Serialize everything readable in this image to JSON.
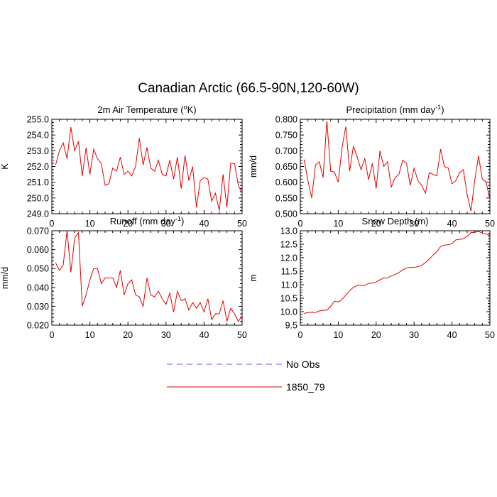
{
  "figure": {
    "title": "Canadian Arctic (66.5-90N,120-60W)"
  },
  "legend": {
    "items": [
      {
        "name": "No Obs",
        "color": "#5a5af0",
        "dash": true
      },
      {
        "name": "1850_79",
        "color": "#e00000",
        "dash": false
      }
    ]
  },
  "colors": {
    "series": "#e00000",
    "axis": "#000000",
    "background": "#ffffff"
  },
  "chart_data": [
    {
      "id": "temp",
      "type": "line",
      "title": "2m Air Temperature (°K)",
      "title_parts": [
        "2m Air Temperature (",
        "o",
        "K)"
      ],
      "ylabel": "K",
      "xlabel": "",
      "xlim": [
        0,
        50
      ],
      "ylim": [
        249.0,
        255.0
      ],
      "xticks": [
        0,
        10,
        20,
        30,
        40,
        50
      ],
      "yticks": [
        249.0,
        250.0,
        251.0,
        252.0,
        253.0,
        254.0,
        255.0
      ],
      "ytick_labels": [
        "249.0",
        "250.0",
        "251.0",
        "252.0",
        "253.0",
        "254.0",
        "255.0"
      ],
      "series": [
        {
          "name": "1850_79",
          "x": [
            1,
            2,
            3,
            4,
            5,
            6,
            7,
            8,
            9,
            10,
            11,
            12,
            13,
            14,
            15,
            16,
            17,
            18,
            19,
            20,
            21,
            22,
            23,
            24,
            25,
            26,
            27,
            28,
            29,
            30,
            31,
            32,
            33,
            34,
            35,
            36,
            37,
            38,
            39,
            40,
            41,
            42,
            43,
            44,
            45,
            46,
            47,
            48,
            49,
            50
          ],
          "values": [
            252.1,
            253.0,
            253.5,
            252.5,
            254.5,
            253.0,
            253.6,
            251.4,
            253.2,
            251.5,
            253.1,
            252.5,
            252.2,
            250.8,
            250.9,
            251.9,
            251.7,
            252.6,
            251.5,
            251.7,
            251.4,
            252.0,
            253.8,
            252.1,
            253.2,
            251.9,
            251.7,
            252.4,
            251.5,
            251.4,
            252.4,
            251.2,
            252.6,
            250.6,
            252.7,
            251.1,
            252.0,
            249.4,
            251.1,
            251.3,
            251.2,
            249.8,
            250.3,
            249.2,
            251.5,
            249.4,
            252.2,
            252.2,
            250.8,
            250.3
          ]
        }
      ]
    },
    {
      "id": "precip",
      "type": "line",
      "title": "Precipitation (mm day-1)",
      "title_parts": [
        "Precipitation (mm day",
        "-1",
        ")"
      ],
      "ylabel": "mm/d",
      "xlabel": "",
      "xlim": [
        0,
        50
      ],
      "ylim": [
        0.5,
        0.8
      ],
      "xticks": [
        0,
        10,
        20,
        30,
        40,
        50
      ],
      "yticks": [
        0.5,
        0.55,
        0.6,
        0.65,
        0.7,
        0.75,
        0.8
      ],
      "ytick_labels": [
        "0.500",
        "0.550",
        "0.600",
        "0.650",
        "0.700",
        "0.750",
        "0.800"
      ],
      "series": [
        {
          "name": "1850_79",
          "x": [
            1,
            2,
            3,
            4,
            5,
            6,
            7,
            8,
            9,
            10,
            11,
            12,
            13,
            14,
            15,
            16,
            17,
            18,
            19,
            20,
            21,
            22,
            23,
            24,
            25,
            26,
            27,
            28,
            29,
            30,
            31,
            32,
            33,
            34,
            35,
            36,
            37,
            38,
            39,
            40,
            41,
            42,
            43,
            44,
            45,
            46,
            47,
            48,
            49,
            50
          ],
          "values": [
            0.672,
            0.605,
            0.55,
            0.655,
            0.665,
            0.615,
            0.795,
            0.635,
            0.632,
            0.6,
            0.71,
            0.777,
            0.635,
            0.715,
            0.68,
            0.64,
            0.675,
            0.608,
            0.66,
            0.58,
            0.7,
            0.65,
            0.665,
            0.585,
            0.615,
            0.625,
            0.67,
            0.66,
            0.59,
            0.645,
            0.605,
            0.59,
            0.565,
            0.63,
            0.625,
            0.62,
            0.705,
            0.65,
            0.645,
            0.595,
            0.605,
            0.63,
            0.64,
            0.56,
            0.508,
            0.605,
            0.684,
            0.61,
            0.6,
            0.545
          ]
        }
      ]
    },
    {
      "id": "runoff",
      "type": "line",
      "title": "Runoff (mm day-1)",
      "title_parts": [
        "Runoff (mm day",
        "-1",
        ")"
      ],
      "ylabel": "mm/d",
      "xlabel": "",
      "xlim": [
        0,
        50
      ],
      "ylim": [
        0.02,
        0.07
      ],
      "xticks": [
        0,
        10,
        20,
        30,
        40,
        50
      ],
      "yticks": [
        0.02,
        0.03,
        0.04,
        0.05,
        0.06,
        0.07
      ],
      "ytick_labels": [
        "0.020",
        "0.030",
        "0.040",
        "0.050",
        "0.060",
        "0.070"
      ],
      "series": [
        {
          "name": "1850_79",
          "x": [
            1,
            2,
            3,
            4,
            5,
            6,
            7,
            8,
            9,
            10,
            11,
            12,
            13,
            14,
            15,
            16,
            17,
            18,
            19,
            20,
            21,
            22,
            23,
            24,
            25,
            26,
            27,
            28,
            29,
            30,
            31,
            32,
            33,
            34,
            35,
            36,
            37,
            38,
            39,
            40,
            41,
            42,
            43,
            44,
            45,
            46,
            47,
            48,
            49,
            50
          ],
          "values": [
            0.053,
            0.049,
            0.052,
            0.07,
            0.048,
            0.066,
            0.069,
            0.03,
            0.036,
            0.044,
            0.05,
            0.05,
            0.042,
            0.045,
            0.045,
            0.045,
            0.04,
            0.049,
            0.036,
            0.042,
            0.044,
            0.036,
            0.035,
            0.03,
            0.045,
            0.036,
            0.035,
            0.038,
            0.034,
            0.031,
            0.037,
            0.027,
            0.038,
            0.033,
            0.034,
            0.028,
            0.032,
            0.029,
            0.032,
            0.027,
            0.034,
            0.023,
            0.026,
            0.026,
            0.033,
            0.022,
            0.029,
            0.026,
            0.022,
            0.025
          ]
        }
      ]
    },
    {
      "id": "snow",
      "type": "line",
      "title": "Snow Depth (m)",
      "title_parts": [
        "Snow Depth (m)",
        "",
        ""
      ],
      "ylabel": "m",
      "xlabel": "",
      "xlim": [
        0,
        50
      ],
      "ylim": [
        9.5,
        13.0
      ],
      "xticks": [
        0,
        10,
        20,
        30,
        40,
        50
      ],
      "yticks": [
        9.5,
        10.0,
        10.5,
        11.0,
        11.5,
        12.0,
        12.5,
        13.0
      ],
      "ytick_labels": [
        "9.5",
        "10.0",
        "10.5",
        "11.0",
        "11.5",
        "12.0",
        "12.5",
        "13.0"
      ],
      "series": [
        {
          "name": "1850_79",
          "x": [
            1,
            2,
            3,
            4,
            5,
            6,
            7,
            8,
            9,
            10,
            11,
            12,
            13,
            14,
            15,
            16,
            17,
            18,
            19,
            20,
            21,
            22,
            23,
            24,
            25,
            26,
            27,
            28,
            29,
            30,
            31,
            32,
            33,
            34,
            35,
            36,
            37,
            38,
            39,
            40,
            41,
            42,
            43,
            44,
            45,
            46,
            47,
            48,
            49,
            50
          ],
          "values": [
            9.93,
            9.97,
            9.98,
            9.97,
            10.03,
            10.05,
            10.06,
            10.2,
            10.39,
            10.36,
            10.45,
            10.62,
            10.78,
            10.9,
            10.97,
            10.98,
            10.97,
            11.05,
            11.06,
            11.1,
            11.18,
            11.25,
            11.25,
            11.33,
            11.38,
            11.45,
            11.55,
            11.62,
            11.64,
            11.64,
            11.67,
            11.72,
            11.82,
            11.95,
            12.1,
            12.22,
            12.42,
            12.47,
            12.48,
            12.52,
            12.66,
            12.68,
            12.7,
            12.8,
            12.93,
            12.94,
            12.98,
            12.9,
            12.88,
            12.82
          ]
        }
      ]
    }
  ]
}
